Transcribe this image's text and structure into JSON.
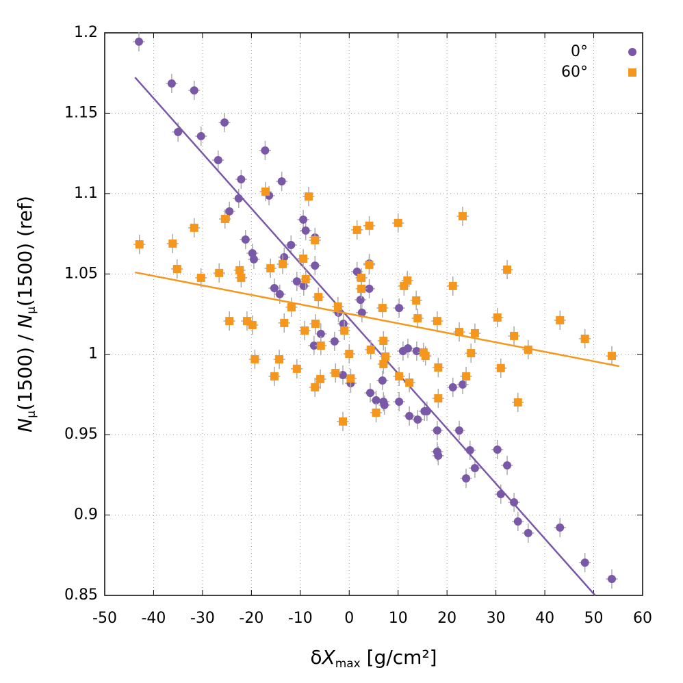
{
  "chart_data": {
    "type": "scatter",
    "xlabel": [
      "δ",
      "X",
      "max",
      " [g/cm²]"
    ],
    "ylabel": [
      "N",
      "μ",
      "(1500) / ",
      "N",
      "μ",
      "(1500) (ref)"
    ],
    "xlim": [
      -50,
      60
    ],
    "xticks": [
      -50,
      -40,
      -30,
      -20,
      -10,
      0,
      10,
      20,
      30,
      40,
      50,
      60
    ],
    "ylim": [
      0.85,
      1.2
    ],
    "yticks": [
      0.85,
      0.9,
      0.95,
      1,
      1.05,
      1.1,
      1.15,
      1.2
    ],
    "grid": true,
    "legend": "top-right",
    "series": [
      {
        "name": "0°",
        "color": "#7a58a8",
        "marker": "circle",
        "xerr": 1.2,
        "yerr": 0.006,
        "x": [
          -43.0,
          -36.3,
          -31.7,
          -35.0,
          -30.3,
          -25.5,
          -26.8,
          -17.2,
          -22.1,
          -13.8,
          -16.4,
          -22.6,
          -24.5,
          -9.4,
          -8.9,
          -7.0,
          -21.2,
          -11.9,
          -19.8,
          -19.5,
          -13.3,
          -7.0,
          -10.7,
          -9.3,
          -15.3,
          -14.2,
          -5.8,
          -7.2,
          -3.0,
          -1.2,
          -2.2,
          1.6,
          2.3,
          2.6,
          4.1,
          4.1,
          -1.3,
          0.3,
          4.3,
          5.5,
          6.8,
          7.0,
          7.2,
          10.2,
          10.2,
          11.0,
          12.0,
          12.3,
          13.8,
          14.0,
          15.4,
          15.9,
          18.0,
          18.0,
          18.2,
          21.2,
          23.2,
          22.5,
          23.9,
          24.7,
          25.7,
          30.3,
          31.0,
          32.3,
          33.7,
          34.5,
          36.6,
          43.1,
          48.2,
          53.7
        ],
        "values": [
          1.1945,
          1.1685,
          1.1642,
          1.1383,
          1.1357,
          1.1442,
          1.1208,
          1.1268,
          1.1089,
          1.1076,
          1.0987,
          1.097,
          1.0889,
          1.0838,
          1.077,
          1.0727,
          1.0714,
          1.068,
          1.0629,
          1.0591,
          1.0604,
          1.0552,
          1.0454,
          1.0425,
          1.0412,
          1.0374,
          1.0127,
          1.0054,
          1.008,
          1.019,
          1.0259,
          1.0514,
          1.0339,
          1.0259,
          1.0565,
          1.0408,
          0.9871,
          0.982,
          0.976,
          0.9714,
          0.9837,
          0.9705,
          0.9684,
          1.0288,
          0.9705,
          1.002,
          1.0037,
          0.9616,
          1.002,
          0.9594,
          0.9646,
          0.9646,
          0.9526,
          0.9394,
          0.9369,
          0.9795,
          0.9812,
          0.9526,
          0.9228,
          0.9403,
          0.9292,
          0.9407,
          0.913,
          0.9309,
          0.9079,
          0.896,
          0.8888,
          0.8922,
          0.8704,
          0.8602
        ],
        "fit": {
          "x": [
            -43.8,
            50.3
          ],
          "y": [
            1.1723,
            0.85
          ]
        }
      },
      {
        "name": "60°",
        "color": "#f5971d",
        "marker": "square",
        "xerr": 1.2,
        "yerr": 0.006,
        "x": [
          -42.9,
          -36.1,
          -35.2,
          -31.7,
          -30.3,
          -26.6,
          -25.4,
          -24.5,
          -22.4,
          -22.1,
          -20.9,
          -19.8,
          -19.3,
          -17.1,
          -16.1,
          -15.3,
          -14.3,
          -13.6,
          -13.3,
          -11.8,
          -10.7,
          -9.4,
          -9.1,
          -8.9,
          -8.3,
          -7.0,
          -7.0,
          -6.9,
          -6.3,
          -5.9,
          -5.8,
          -2.8,
          -2.3,
          -1.3,
          -1.0,
          0.0,
          0.3,
          1.6,
          2.5,
          2.5,
          4.1,
          4.1,
          4.4,
          5.5,
          6.8,
          7.0,
          7.0,
          7.4,
          10.0,
          10.2,
          11.2,
          11.9,
          12.3,
          13.7,
          14.0,
          15.2,
          15.6,
          18.0,
          18.2,
          18.2,
          21.2,
          22.5,
          23.2,
          23.9,
          24.9,
          25.7,
          30.3,
          31.0,
          32.3,
          33.7,
          34.5,
          36.6,
          43.1,
          48.2,
          53.7
        ],
        "values": [
          1.0684,
          1.0689,
          1.0531,
          1.0787,
          1.0476,
          1.0506,
          1.0842,
          1.0207,
          1.0523,
          1.0476,
          1.0207,
          1.0182,
          0.9969,
          1.1012,
          1.0535,
          0.9863,
          0.9969,
          1.0561,
          1.0195,
          1.0293,
          0.991,
          1.0595,
          1.0148,
          1.0467,
          1.0982,
          1.071,
          0.9795,
          1.019,
          1.0356,
          0.9846,
          1.0054,
          0.9884,
          1.0297,
          0.9582,
          1.0148,
          1.0003,
          0.985,
          1.0774,
          1.0476,
          1.0408,
          1.08,
          1.0557,
          1.0029,
          0.9637,
          1.0288,
          1.0084,
          0.9939,
          0.9986,
          1.0817,
          0.9863,
          1.0425,
          1.0459,
          0.9824,
          1.0335,
          1.0224,
          1.0012,
          0.999,
          1.0207,
          0.9918,
          0.9726,
          1.0425,
          1.0139,
          1.0859,
          0.9863,
          1.0007,
          1.0131,
          1.0229,
          0.9914,
          1.0527,
          1.0114,
          0.9701,
          1.0029,
          1.0212,
          1.0097,
          0.999
        ],
        "fit": {
          "x": [
            -43.8,
            55.2
          ],
          "y": [
            1.051,
            0.9926
          ]
        }
      }
    ]
  }
}
